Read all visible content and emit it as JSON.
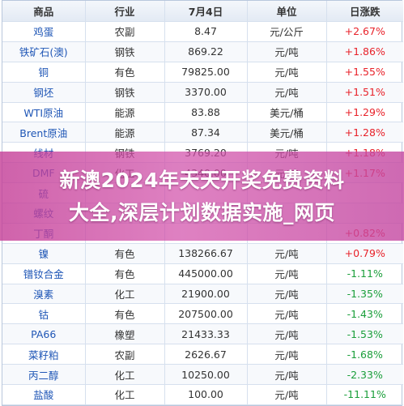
{
  "headers": [
    "商品",
    "行业",
    "7月4日",
    "单位",
    "日涨跌"
  ],
  "rows": [
    {
      "name": "鸡蛋",
      "industry": "农副",
      "price": "8.47",
      "unit": "元/公斤",
      "change": "+2.67%",
      "dir": "up"
    },
    {
      "name": "铁矿石(澳)",
      "industry": "钢铁",
      "price": "869.22",
      "unit": "元/吨",
      "change": "+1.86%",
      "dir": "up"
    },
    {
      "name": "铜",
      "industry": "有色",
      "price": "79825.00",
      "unit": "元/吨",
      "change": "+1.55%",
      "dir": "up"
    },
    {
      "name": "钢坯",
      "industry": "钢铁",
      "price": "3370.00",
      "unit": "元/吨",
      "change": "+1.51%",
      "dir": "up"
    },
    {
      "name": "WTI原油",
      "industry": "能源",
      "price": "83.88",
      "unit": "美元/桶",
      "change": "+1.29%",
      "dir": "up"
    },
    {
      "name": "Brent原油",
      "industry": "能源",
      "price": "87.34",
      "unit": "美元/桶",
      "change": "+1.28%",
      "dir": "up"
    },
    {
      "name": "线材",
      "industry": "钢铁",
      "price": "3769.20",
      "unit": "元/吨",
      "change": "+1.18%",
      "dir": "up"
    },
    {
      "name": "DMF",
      "industry": "化工",
      "price": "4340.00",
      "unit": "元/吨",
      "change": "+1.17%",
      "dir": "up"
    },
    {
      "name": "硫",
      "industry": "",
      "price": "",
      "unit": "",
      "change": "",
      "dir": "up"
    },
    {
      "name": "螺纹",
      "industry": "",
      "price": "",
      "unit": "",
      "change": "",
      "dir": "up"
    },
    {
      "name": "丁酮",
      "industry": "",
      "price": "",
      "unit": "",
      "change": "+0.82%",
      "dir": "up"
    },
    {
      "name": "镍",
      "industry": "有色",
      "price": "138266.67",
      "unit": "元/吨",
      "change": "+0.79%",
      "dir": "up"
    },
    {
      "name": "镨钕合金",
      "industry": "有色",
      "price": "445000.00",
      "unit": "元/吨",
      "change": "-1.11%",
      "dir": "down"
    },
    {
      "name": "溴素",
      "industry": "化工",
      "price": "21900.00",
      "unit": "元/吨",
      "change": "-1.35%",
      "dir": "down"
    },
    {
      "name": "钴",
      "industry": "有色",
      "price": "207500.00",
      "unit": "元/吨",
      "change": "-1.43%",
      "dir": "down"
    },
    {
      "name": "PA66",
      "industry": "橡塑",
      "price": "21433.33",
      "unit": "元/吨",
      "change": "-1.53%",
      "dir": "down"
    },
    {
      "name": "菜籽粕",
      "industry": "农副",
      "price": "2626.67",
      "unit": "元/吨",
      "change": "-1.68%",
      "dir": "down"
    },
    {
      "name": "丙二醇",
      "industry": "化工",
      "price": "10250.00",
      "unit": "元/吨",
      "change": "-2.33%",
      "dir": "down"
    },
    {
      "name": "盐酸",
      "industry": "化工",
      "price": "100.00",
      "unit": "元/吨",
      "change": "-11.11%",
      "dir": "down"
    }
  ],
  "banner": {
    "line1": "新澳2024年天天开奖免费资料",
    "line2": "大全,深层计划数据实施_网页"
  },
  "colors": {
    "up": "#e8222a",
    "down": "#1a9e3a",
    "name": "#1f56b6",
    "banner": "#c43c96"
  }
}
